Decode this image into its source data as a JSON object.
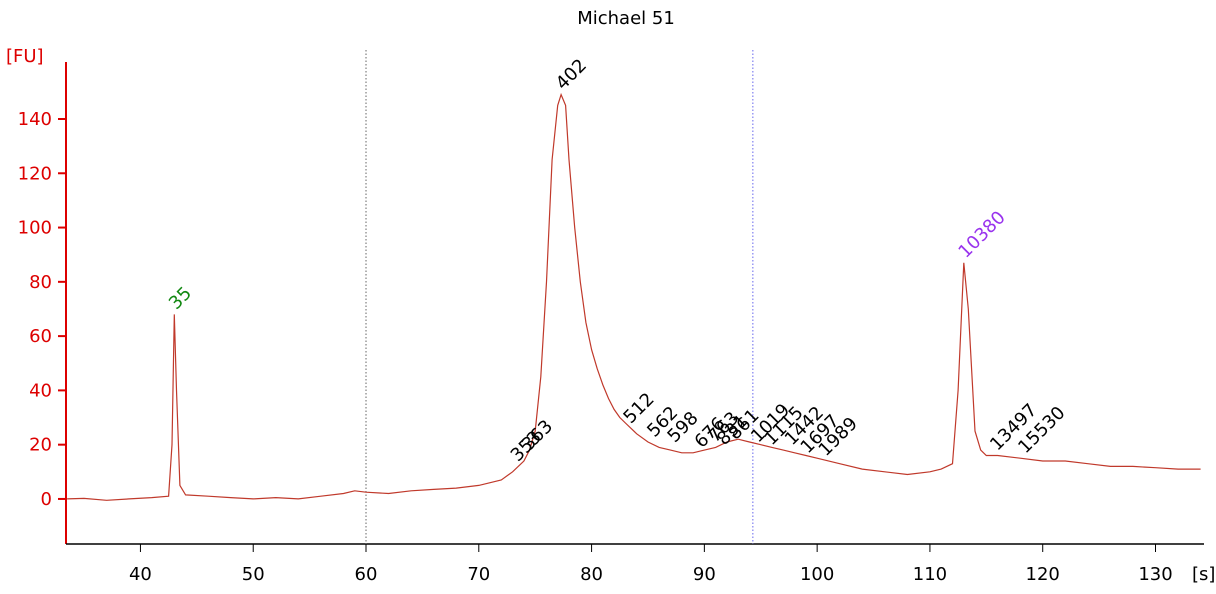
{
  "chart_data": {
    "type": "line",
    "title": "Michael 51",
    "x_label": "[s]",
    "y_label": "[FU]",
    "xlim": [
      33.4,
      134.3
    ],
    "ylim": [
      -16.6,
      161
    ],
    "xticks": [
      40,
      50,
      60,
      70,
      80,
      90,
      100,
      110,
      120,
      130
    ],
    "yticks": [
      0,
      20,
      40,
      60,
      80,
      100,
      120,
      140
    ],
    "y_axis_color": "#dd0000",
    "x": [
      33.5,
      35,
      37,
      39,
      41,
      42.5,
      42.8,
      43,
      43.2,
      43.5,
      44,
      46,
      48,
      50,
      52,
      54,
      56,
      58,
      59,
      60,
      62,
      64,
      66,
      68,
      70,
      71,
      72,
      73,
      74,
      74.5,
      75,
      75.5,
      76,
      76.5,
      77,
      77.3,
      77.7,
      78,
      78.5,
      79,
      79.5,
      80,
      80.5,
      81,
      81.5,
      82,
      82.5,
      83,
      83.5,
      84,
      85,
      86,
      87,
      88,
      89,
      90,
      91,
      92,
      93,
      94,
      95,
      96,
      97,
      98,
      99,
      100,
      102,
      104,
      106,
      108,
      110,
      111,
      112,
      112.5,
      113,
      113.4,
      114,
      114.5,
      115,
      116,
      118,
      120,
      122,
      124,
      126,
      128,
      130,
      132,
      134
    ],
    "series": [
      {
        "name": "Michael 51",
        "color": "#c0392b",
        "values": [
          0,
          0.2,
          -0.5,
          0,
          0.5,
          1,
          20,
          68,
          40,
          5,
          1.5,
          1,
          0.5,
          0,
          0.5,
          0,
          1,
          2,
          3,
          2.5,
          2,
          3,
          3.5,
          4,
          5,
          6,
          7,
          10,
          14,
          18,
          25,
          45,
          80,
          125,
          145,
          149,
          145,
          125,
          100,
          80,
          65,
          55,
          48,
          42,
          37,
          33,
          30,
          28,
          26,
          24,
          21,
          19,
          18,
          17,
          17,
          18,
          19,
          21,
          22,
          21,
          20,
          19,
          18,
          17,
          16,
          15,
          13,
          11,
          10,
          9,
          10,
          11,
          13,
          40,
          87,
          70,
          25,
          18,
          16,
          16,
          15,
          14,
          14,
          13,
          12,
          12,
          11.5,
          11,
          11
        ]
      }
    ],
    "vlines": [
      {
        "x": 60,
        "color": "#666666"
      },
      {
        "x": 94.3,
        "color": "#6666ee"
      }
    ],
    "annotations": [
      {
        "text": "35",
        "x": 43,
        "y": 68,
        "color": "#118811"
      },
      {
        "text": "402",
        "x": 77.3,
        "y": 149,
        "color": "#000000"
      },
      {
        "text": "10380",
        "x": 113,
        "y": 87,
        "color": "#9933ee"
      },
      {
        "text": "353",
        "x": 73.3,
        "y": 12,
        "color": "#000000"
      },
      {
        "text": "363",
        "x": 74.3,
        "y": 16,
        "color": "#000000"
      },
      {
        "text": "512",
        "x": 83.3,
        "y": 26,
        "color": "#000000"
      },
      {
        "text": "562",
        "x": 85.4,
        "y": 21,
        "color": "#000000"
      },
      {
        "text": "598",
        "x": 87.2,
        "y": 19,
        "color": "#000000"
      },
      {
        "text": "676",
        "x": 89.6,
        "y": 17,
        "color": "#000000"
      },
      {
        "text": "763",
        "x": 90.8,
        "y": 19,
        "color": "#000000"
      },
      {
        "text": "831",
        "x": 91.6,
        "y": 18,
        "color": "#000000"
      },
      {
        "text": "861",
        "x": 92.6,
        "y": 20,
        "color": "#000000"
      },
      {
        "text": "1019",
        "x": 94.6,
        "y": 19,
        "color": "#000000"
      },
      {
        "text": "1115",
        "x": 95.8,
        "y": 18,
        "color": "#000000"
      },
      {
        "text": "1442",
        "x": 97.6,
        "y": 18,
        "color": "#000000"
      },
      {
        "text": "1697",
        "x": 99,
        "y": 15,
        "color": "#000000"
      },
      {
        "text": "1989",
        "x": 100.6,
        "y": 14,
        "color": "#000000"
      },
      {
        "text": "13497",
        "x": 115.8,
        "y": 16,
        "color": "#000000"
      },
      {
        "text": "15530",
        "x": 118.3,
        "y": 15,
        "color": "#000000"
      }
    ]
  }
}
